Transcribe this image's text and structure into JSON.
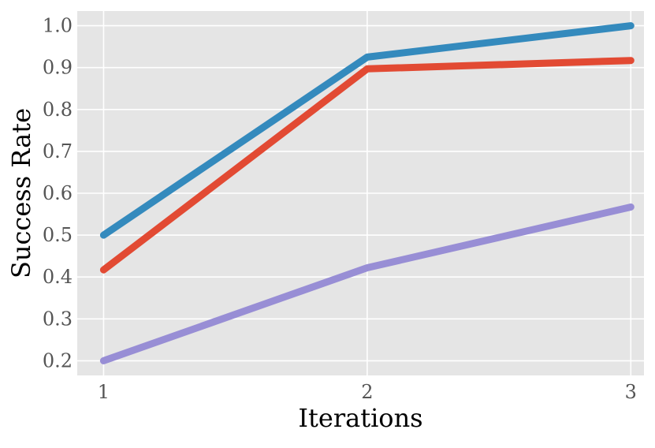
{
  "chart_data": {
    "type": "line",
    "xlabel": "Iterations",
    "ylabel": "Success Rate",
    "x": [
      1,
      2,
      3
    ],
    "xlim": [
      0.9,
      3.05
    ],
    "ylim": [
      0.165,
      1.035
    ],
    "xticks": [
      1,
      2,
      3
    ],
    "xtick_labels": [
      "1",
      "2",
      "3"
    ],
    "yticks": [
      0.2,
      0.3,
      0.4,
      0.5,
      0.6,
      0.7,
      0.8,
      0.9,
      1.0
    ],
    "ytick_labels": [
      "0.2",
      "0.3",
      "0.4",
      "0.5",
      "0.6",
      "0.7",
      "0.8",
      "0.9",
      "1.0"
    ],
    "grid": true,
    "legend": "none",
    "series": [
      {
        "color": "#348ABD",
        "values": [
          0.5,
          0.925,
          1.0
        ]
      },
      {
        "color": "#E24A33",
        "values": [
          0.417,
          0.897,
          0.917
        ]
      },
      {
        "color": "#988ED5",
        "values": [
          0.2,
          0.422,
          0.567
        ]
      }
    ],
    "colors": {
      "plot_background": "#E5E5E5",
      "grid": "#FFFFFF"
    }
  }
}
